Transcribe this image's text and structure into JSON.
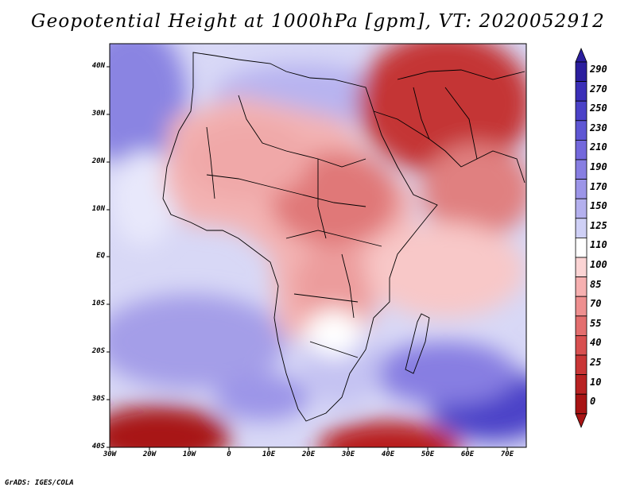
{
  "title": "Geopotential Height at 1000hPa [gpm], VT: 2020052912",
  "credit": "GrADS: IGES/COLA",
  "map": {
    "region": "Africa",
    "variable": "Geopotential Height at 1000hPa",
    "units": "gpm",
    "valid_time": "2020052912",
    "lat_labels": [
      "40N",
      "30N",
      "20N",
      "10N",
      "EQ",
      "10S",
      "20S",
      "30S",
      "40S"
    ],
    "lon_labels": [
      "30W",
      "20W",
      "10W",
      "0",
      "10E",
      "20E",
      "30E",
      "40E",
      "50E",
      "60E",
      "70E"
    ]
  },
  "colorbar": {
    "levels": [
      "290",
      "270",
      "250",
      "230",
      "210",
      "190",
      "170",
      "150",
      "125",
      "110",
      "100",
      "85",
      "70",
      "55",
      "40",
      "25",
      "10",
      "0"
    ],
    "colors": [
      "#2b1e9e",
      "#3b2fb8",
      "#4b42c8",
      "#5e56d4",
      "#7368dc",
      "#877ee2",
      "#9c95e8",
      "#b4b0ee",
      "#cfd0f6",
      "#ffffff",
      "#fbd4d4",
      "#f6b0b0",
      "#ee8f8f",
      "#e36e6e",
      "#d85050",
      "#c93636",
      "#b82222",
      "#a81414"
    ]
  }
}
